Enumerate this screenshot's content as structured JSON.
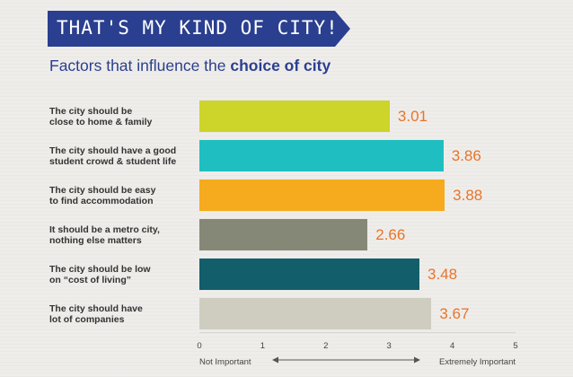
{
  "header": {
    "banner_title": "THAT'S MY KIND OF CITY!",
    "subtitle_prefix": "Factors that influence the ",
    "subtitle_bold": "choice of city"
  },
  "chart_data": {
    "type": "bar",
    "orientation": "horizontal",
    "categories": [
      "The city should be close to home & family",
      "The city should have a good student crowd & student life",
      "The city should be easy to find accommodation",
      "It should be a metro city, nothing else matters",
      "The city should be low on “cost of living”",
      "The city should have lot of companies"
    ],
    "label_lines": [
      [
        "The city should be",
        "close to home & family"
      ],
      [
        "The city should have a good",
        "student crowd & student life"
      ],
      [
        "The city should be easy",
        "to find accommodation"
      ],
      [
        "It should be a metro city,",
        "nothing else matters"
      ],
      [
        "The city should be low",
        "on “cost of living”"
      ],
      [
        "The city should have",
        "lot of companies"
      ]
    ],
    "values": [
      3.01,
      3.86,
      3.88,
      2.66,
      3.48,
      3.67
    ],
    "value_labels": [
      "3.01",
      "3.86",
      "3.88",
      "2.66",
      "3.48",
      "3.67"
    ],
    "bar_colors": [
      "#cdd42a",
      "#1fbfc1",
      "#f5ab1d",
      "#858876",
      "#135e6b",
      "#cfcdc0"
    ],
    "value_label_color": "#e8742a",
    "xlim": [
      0,
      5
    ],
    "xticks": [
      "0",
      "1",
      "2",
      "3",
      "4",
      "5"
    ],
    "scale_low_label": "Not Important",
    "scale_high_label": "Extremely Important",
    "grid": false
  },
  "colors": {
    "banner": "#2a3f8f",
    "subtitle": "#2a3f8f",
    "background": "#efedea"
  }
}
